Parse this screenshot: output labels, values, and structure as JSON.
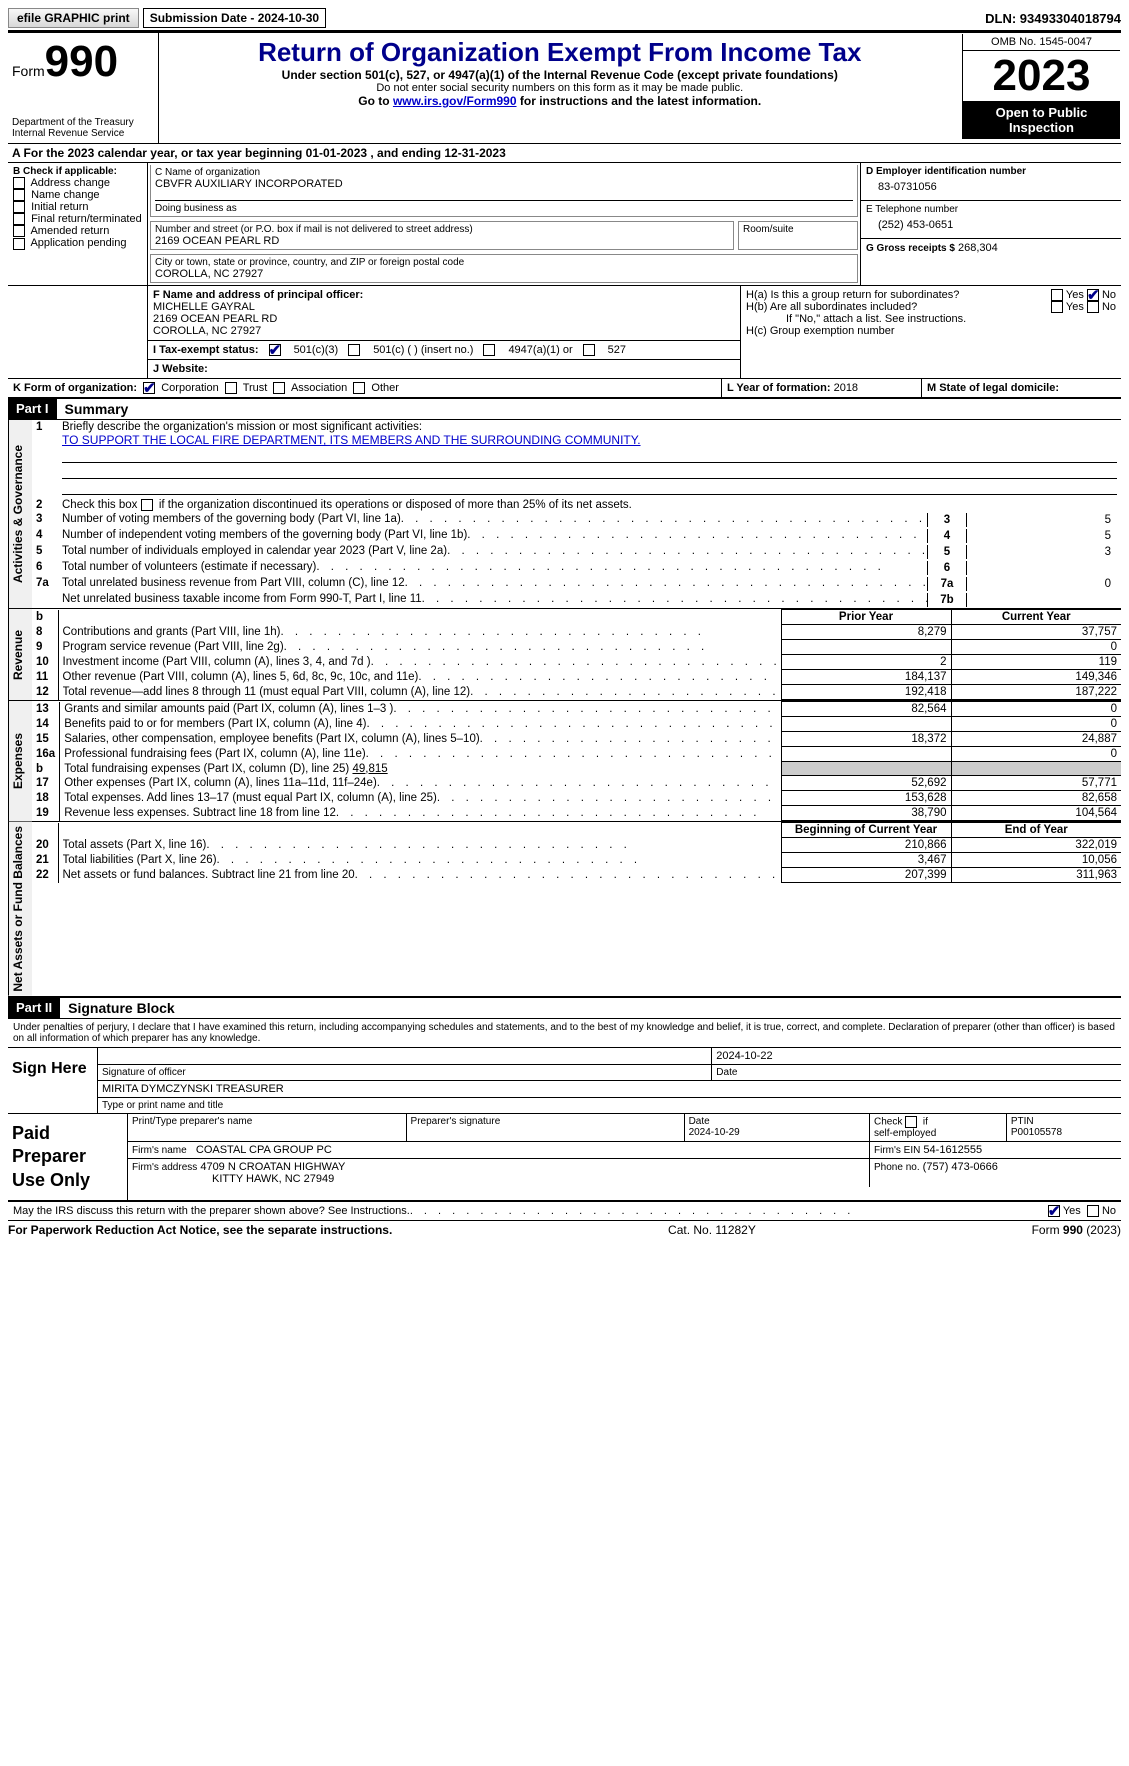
{
  "topbar": {
    "efile": "efile GRAPHIC print",
    "submission": "Submission Date - 2024-10-30",
    "dln": "DLN: 93493304018794"
  },
  "header": {
    "form_label": "Form",
    "form_num": "990",
    "dept": "Department of the Treasury\nInternal Revenue Service",
    "title": "Return of Organization Exempt From Income Tax",
    "sub1": "Under section 501(c), 527, or 4947(a)(1) of the Internal Revenue Code (except private foundations)",
    "sub2": "Do not enter social security numbers on this form as it may be made public.",
    "sub3_pre": "Go to ",
    "sub3_link": "www.irs.gov/Form990",
    "sub3_post": " for instructions and the latest information.",
    "omb": "OMB No. 1545-0047",
    "year": "2023",
    "inspect": "Open to Public Inspection"
  },
  "rowA": "A For the 2023 calendar year, or tax year beginning 01-01-2023    , and ending 12-31-2023",
  "boxB": {
    "label": "B Check if applicable:",
    "items": [
      "Address change",
      "Name change",
      "Initial return",
      "Final return/terminated",
      "Amended return",
      "Application pending"
    ]
  },
  "boxC": {
    "name_lbl": "C Name of organization",
    "name": "CBVFR AUXILIARY INCORPORATED",
    "dba_lbl": "Doing business as",
    "addr_lbl": "Number and street (or P.O. box if mail is not delivered to street address)",
    "addr": "2169 OCEAN PEARL RD",
    "room_lbl": "Room/suite",
    "city_lbl": "City or town, state or province, country, and ZIP or foreign postal code",
    "city": "COROLLA, NC  27927"
  },
  "boxD": {
    "lbl": "D Employer identification number",
    "val": "83-0731056"
  },
  "boxE": {
    "lbl": "E Telephone number",
    "val": "(252) 453-0651"
  },
  "boxG": {
    "lbl": "G Gross receipts $",
    "val": "268,304"
  },
  "boxF": {
    "lbl": "F  Name and address of principal officer:",
    "name": "MICHELLE GAYRAL",
    "addr1": "2169 OCEAN PEARL RD",
    "addr2": "COROLLA, NC  27927"
  },
  "boxH": {
    "ha": "H(a)  Is this a group return for subordinates?",
    "hb": "H(b)  Are all subordinates included?",
    "hb2": "If \"No,\" attach a list. See instructions.",
    "hc": "H(c)  Group exemption number",
    "yes": "Yes",
    "no": "No"
  },
  "boxI": {
    "lbl": "I   Tax-exempt status:",
    "o1": "501(c)(3)",
    "o2": "501(c) (  ) (insert no.)",
    "o3": "4947(a)(1) or",
    "o4": "527"
  },
  "boxJ": {
    "lbl": "J   Website:"
  },
  "boxK": {
    "lbl": "K Form of organization:",
    "o1": "Corporation",
    "o2": "Trust",
    "o3": "Association",
    "o4": "Other"
  },
  "boxL": {
    "lbl": "L Year of formation:",
    "val": "2018"
  },
  "boxM": {
    "lbl": "M State of legal domicile:"
  },
  "part1": {
    "bar": "Part I",
    "title": "Summary"
  },
  "sec_gov": {
    "vlabel": "Activities & Governance",
    "l1_lbl": "Briefly describe the organization's mission or most significant activities:",
    "l1_val": "TO SUPPORT THE LOCAL FIRE DEPARTMENT, ITS MEMBERS AND THE SURROUNDING COMMUNITY.",
    "l2": "Check this box        if the organization discontinued its operations or disposed of more than 25% of its net assets.",
    "rows": [
      {
        "n": "3",
        "t": "Number of voting members of the governing body (Part VI, line 1a)",
        "b": "3",
        "v": "5"
      },
      {
        "n": "4",
        "t": "Number of independent voting members of the governing body (Part VI, line 1b)",
        "b": "4",
        "v": "5"
      },
      {
        "n": "5",
        "t": "Total number of individuals employed in calendar year 2023 (Part V, line 2a)",
        "b": "5",
        "v": "3"
      },
      {
        "n": "6",
        "t": "Total number of volunteers (estimate if necessary)",
        "b": "6",
        "v": ""
      },
      {
        "n": "7a",
        "t": "Total unrelated business revenue from Part VIII, column (C), line 12",
        "b": "7a",
        "v": "0"
      },
      {
        "n": "",
        "t": "Net unrelated business taxable income from Form 990-T, Part I, line 11",
        "b": "7b",
        "v": ""
      }
    ]
  },
  "fin_hdr": {
    "b": "b",
    "py": "Prior Year",
    "cy": "Current Year"
  },
  "sec_rev": {
    "vlabel": "Revenue",
    "rows": [
      {
        "n": "8",
        "t": "Contributions and grants (Part VIII, line 1h)",
        "py": "8,279",
        "cy": "37,757"
      },
      {
        "n": "9",
        "t": "Program service revenue (Part VIII, line 2g)",
        "py": "",
        "cy": "0"
      },
      {
        "n": "10",
        "t": "Investment income (Part VIII, column (A), lines 3, 4, and 7d )",
        "py": "2",
        "cy": "119"
      },
      {
        "n": "11",
        "t": "Other revenue (Part VIII, column (A), lines 5, 6d, 8c, 9c, 10c, and 11e)",
        "py": "184,137",
        "cy": "149,346"
      },
      {
        "n": "12",
        "t": "Total revenue—add lines 8 through 11 (must equal Part VIII, column (A), line 12)",
        "py": "192,418",
        "cy": "187,222"
      }
    ]
  },
  "sec_exp": {
    "vlabel": "Expenses",
    "rows": [
      {
        "n": "13",
        "t": "Grants and similar amounts paid (Part IX, column (A), lines 1–3 )",
        "py": "82,564",
        "cy": "0"
      },
      {
        "n": "14",
        "t": "Benefits paid to or for members (Part IX, column (A), line 4)",
        "py": "",
        "cy": "0"
      },
      {
        "n": "15",
        "t": "Salaries, other compensation, employee benefits (Part IX, column (A), lines 5–10)",
        "py": "18,372",
        "cy": "24,887"
      },
      {
        "n": "16a",
        "t": "Professional fundraising fees (Part IX, column (A), line 11e)",
        "py": "",
        "cy": "0"
      }
    ],
    "l16b_t": "Total fundraising expenses (Part IX, column (D), line 25)",
    "l16b_v": "49,815",
    "rows2": [
      {
        "n": "17",
        "t": "Other expenses (Part IX, column (A), lines 11a–11d, 11f–24e)",
        "py": "52,692",
        "cy": "57,771"
      },
      {
        "n": "18",
        "t": "Total expenses. Add lines 13–17 (must equal Part IX, column (A), line 25)",
        "py": "153,628",
        "cy": "82,658"
      },
      {
        "n": "19",
        "t": "Revenue less expenses. Subtract line 18 from line 12",
        "py": "38,790",
        "cy": "104,564"
      }
    ]
  },
  "sec_net": {
    "vlabel": "Net Assets or Fund Balances",
    "hdr_py": "Beginning of Current Year",
    "hdr_cy": "End of Year",
    "rows": [
      {
        "n": "20",
        "t": "Total assets (Part X, line 16)",
        "py": "210,866",
        "cy": "322,019"
      },
      {
        "n": "21",
        "t": "Total liabilities (Part X, line 26)",
        "py": "3,467",
        "cy": "10,056"
      },
      {
        "n": "22",
        "t": "Net assets or fund balances. Subtract line 21 from line 20",
        "py": "207,399",
        "cy": "311,963"
      }
    ]
  },
  "part2": {
    "bar": "Part II",
    "title": "Signature Block"
  },
  "perjury": "Under penalties of perjury, I declare that I have examined this return, including accompanying schedules and statements, and to the best of my knowledge and belief, it is true, correct, and complete. Declaration of preparer (other than officer) is based on all information of which preparer has any knowledge.",
  "sign": {
    "label": "Sign Here",
    "date": "2024-10-22",
    "sig_lbl": "Signature of officer",
    "date_lbl": "Date",
    "name": "MIRITA DYMCZYNSKI  TREASURER",
    "name_lbl": "Type or print name and title"
  },
  "prep": {
    "label": "Paid Preparer Use Only",
    "h1": "Print/Type preparer's name",
    "h2": "Preparer's signature",
    "h3": "Date",
    "h3v": "2024-10-29",
    "h4": "Check         if self-employed",
    "h5_lbl": "PTIN",
    "h5": "P00105578",
    "firm_lbl": "Firm's name",
    "firm": "COASTAL CPA GROUP PC",
    "ein_lbl": "Firm's EIN",
    "ein": "54-1612555",
    "addr_lbl": "Firm's address",
    "addr1": "4709 N CROATAN HIGHWAY",
    "addr2": "KITTY HAWK, NC  27949",
    "phone_lbl": "Phone no.",
    "phone": "(757) 473-0666"
  },
  "discuss": {
    "t": "May the IRS discuss this return with the preparer shown above? See Instructions.",
    "yes": "Yes",
    "no": "No"
  },
  "footer": {
    "l": "For Paperwork Reduction Act Notice, see the separate instructions.",
    "c": "Cat. No. 11282Y",
    "r_pre": "Form ",
    "r_b": "990",
    "r_post": " (2023)"
  }
}
